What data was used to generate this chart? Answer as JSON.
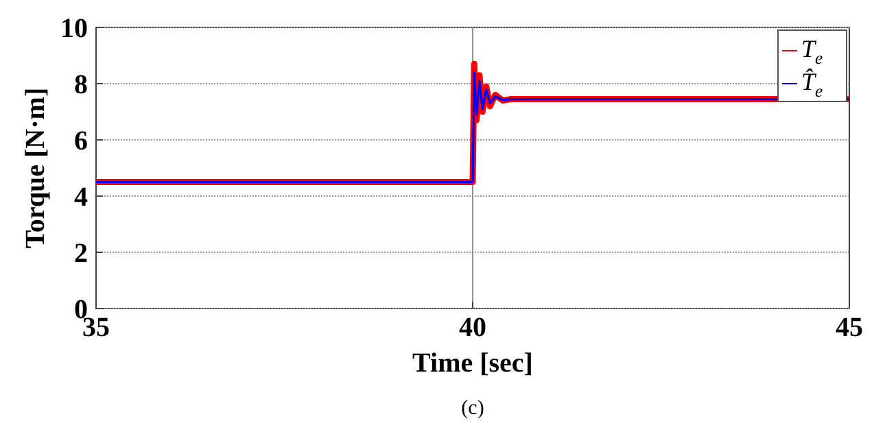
{
  "chart_data": {
    "type": "line",
    "xlabel": "Time [sec]",
    "ylabel": "Torque [N·m]",
    "annotations": [
      "(c)"
    ],
    "xlim": [
      35,
      45
    ],
    "xticks": [
      35,
      40,
      45
    ],
    "ylim": [
      0,
      10
    ],
    "yticks": [
      0,
      2,
      4,
      6,
      8,
      10
    ],
    "grid": "y",
    "ref_lines": [
      {
        "axis": "x",
        "value": 40,
        "color": "#777777"
      }
    ],
    "legend": "top right",
    "series": [
      {
        "name": "T$_{e}$",
        "color": "#ff0000",
        "x": [
          35,
          39.99,
          40,
          40.02,
          40.05,
          40.09,
          40.13,
          40.18,
          40.23,
          40.3,
          40.4,
          40.5,
          45
        ],
        "values": [
          4.5,
          4.5,
          4.5,
          8.7,
          6.7,
          8.3,
          7.0,
          7.9,
          7.2,
          7.6,
          7.4,
          7.45,
          7.45
        ]
      },
      {
        "name": "T̂$_{e}$",
        "color": "#0000ff",
        "x": [
          35,
          39.99,
          40,
          40.02,
          40.05,
          40.09,
          40.13,
          40.18,
          40.23,
          40.3,
          40.4,
          40.5,
          45
        ],
        "values": [
          4.5,
          4.5,
          4.5,
          8.4,
          6.9,
          8.1,
          7.1,
          7.8,
          7.3,
          7.55,
          7.42,
          7.45,
          7.45
        ]
      }
    ]
  }
}
